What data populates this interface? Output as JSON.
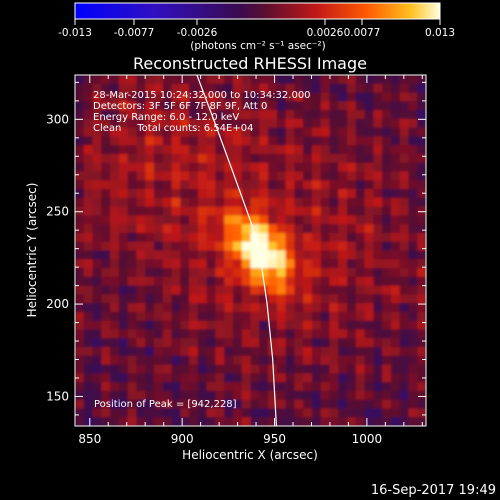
{
  "colorbar": {
    "ticks": [
      "-0.013",
      "-0.0077",
      "-0.0026",
      "0.0026",
      "0.0077",
      "0.013"
    ],
    "unit_label": "(photons cm⁻² s⁻¹ asec⁻²)"
  },
  "plot": {
    "title": "Reconstructed RHESSI Image",
    "info_lines": [
      "28-Mar-2015 10:24:32.000 to 10:34:32.000",
      "Detectors: 3F 5F 6F 7F 8F 9F, Att 0",
      "Energy Range: 6.0 - 12.0 keV",
      "Clean     Total counts: 6.54E+04"
    ],
    "peak_label": "Position of Peak = [942,228]",
    "timestamp": "16-Sep-2017 19:49"
  },
  "chart_data": {
    "type": "heatmap",
    "title": "Reconstructed RHESSI Image",
    "xlabel": "Heliocentric X (arcsec)",
    "ylabel": "Heliocentric Y (arcsec)",
    "xlim": [
      842,
      1032
    ],
    "ylim": [
      134,
      324
    ],
    "x_ticks": [
      850,
      900,
      950,
      1000
    ],
    "y_ticks": [
      150,
      200,
      250,
      300
    ],
    "colorbar_range": [
      -0.013,
      0.013
    ],
    "colormap": "hot",
    "peak": [
      942,
      228
    ],
    "peak_value": 0.013,
    "solar_limb_points": [
      [
        908,
        324
      ],
      [
        917,
        300
      ],
      [
        928,
        270
      ],
      [
        937,
        245
      ],
      [
        942,
        228
      ],
      [
        946,
        200
      ],
      [
        949,
        170
      ],
      [
        951,
        134
      ]
    ]
  }
}
